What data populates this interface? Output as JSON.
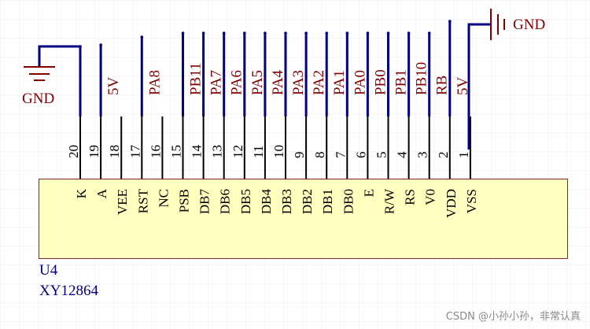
{
  "component": {
    "designator": "U4",
    "part_name": "XY12864",
    "body_color": "#ffffc0",
    "border_color": "#7b2b2b"
  },
  "pins": [
    {
      "number": "20",
      "name": "K",
      "net": "5V"
    },
    {
      "number": "19",
      "name": "A",
      "net": "5V"
    },
    {
      "number": "18",
      "name": "VEE",
      "net": ""
    },
    {
      "number": "17",
      "name": "RST",
      "net": "PA8"
    },
    {
      "number": "16",
      "name": "NC",
      "net": ""
    },
    {
      "number": "15",
      "name": "PSB",
      "net": "PB11"
    },
    {
      "number": "14",
      "name": "DB7",
      "net": "PA7"
    },
    {
      "number": "13",
      "name": "DB6",
      "net": "PA6"
    },
    {
      "number": "12",
      "name": "DB5",
      "net": "PA5"
    },
    {
      "number": "11",
      "name": "DB4",
      "net": "PA4"
    },
    {
      "number": "10",
      "name": "DB3",
      "net": "PA3"
    },
    {
      "number": "9",
      "name": "DB2",
      "net": "PA2"
    },
    {
      "number": "8",
      "name": "DB1",
      "net": "PA1"
    },
    {
      "number": "7",
      "name": "DB0",
      "net": "PA0"
    },
    {
      "number": "6",
      "name": "E",
      "net": "PB0"
    },
    {
      "number": "5",
      "name": "R/W",
      "net": "PB1"
    },
    {
      "number": "4",
      "name": "RS",
      "net": "PB10"
    },
    {
      "number": "3",
      "name": "V0",
      "net": "RB"
    },
    {
      "number": "2",
      "name": "VDD",
      "net": "5V"
    },
    {
      "number": "1",
      "name": "VSS",
      "net": "GND"
    }
  ],
  "net_labels": [
    {
      "pin": "19",
      "text": "5V"
    },
    {
      "pin": "17",
      "text": "PA8"
    },
    {
      "pin": "15",
      "text": "PB11"
    },
    {
      "pin": "14",
      "text": "PA7"
    },
    {
      "pin": "13",
      "text": "PA6"
    },
    {
      "pin": "12",
      "text": "PA5"
    },
    {
      "pin": "11",
      "text": "PA4"
    },
    {
      "pin": "10",
      "text": "PA3"
    },
    {
      "pin": "9",
      "text": "PA2"
    },
    {
      "pin": "8",
      "text": "PA1"
    },
    {
      "pin": "7",
      "text": "PA0"
    },
    {
      "pin": "6",
      "text": "PB0"
    },
    {
      "pin": "5",
      "text": "PB1"
    },
    {
      "pin": "4",
      "text": "PB10"
    },
    {
      "pin": "3",
      "text": "RB"
    },
    {
      "pin": "2",
      "text": "5V"
    }
  ],
  "power_ports": {
    "gnd_left": {
      "label": "GND"
    },
    "gnd_right": {
      "label": "GND"
    }
  },
  "colors": {
    "wire": "#000080",
    "pin": "#000000",
    "net_label": "#800000",
    "designator": "#000080",
    "power_symbol": "#800000",
    "watermark": "#8a8a8a"
  },
  "watermark": "CSDN @小孙小孙，非常认真"
}
